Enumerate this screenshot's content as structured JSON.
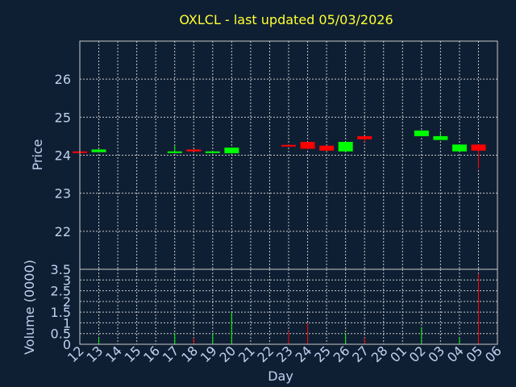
{
  "chart_data": {
    "type": "candlestick",
    "title": "OXLCL - last updated 05/03/2026",
    "price_panel": {
      "ylabel": "Price",
      "ylim": [
        21,
        27
      ],
      "yticks": [
        "22",
        "23",
        "24",
        "25",
        "26"
      ]
    },
    "volume_panel": {
      "ylabel": "Volume (0000)",
      "ylim": [
        0,
        3.5
      ],
      "yticks": [
        "0",
        "0.5",
        "1",
        "1.5",
        "2",
        "2.5",
        "3",
        "3.5"
      ]
    },
    "xlabel": "Day",
    "x_ticks": [
      "12",
      "13",
      "14",
      "15",
      "16",
      "17",
      "18",
      "19",
      "20",
      "21",
      "22",
      "23",
      "24",
      "25",
      "26",
      "27",
      "28",
      "01",
      "02",
      "03",
      "04",
      "05",
      "06"
    ],
    "colors": {
      "up": "#00ff00",
      "down": "#ff0000",
      "title": "#ffff33",
      "axis_text": "#c0d0f0",
      "background": "#0f1f33",
      "grid": "#c8c8c8"
    },
    "candles": [
      {
        "day": "12",
        "open": 24.1,
        "high": 24.1,
        "low": 24.08,
        "close": 24.08,
        "volume": 0.02
      },
      {
        "day": "13",
        "open": 24.08,
        "high": 24.15,
        "low": 24.07,
        "close": 24.15,
        "volume": 0.3
      },
      {
        "day": "17",
        "open": 24.08,
        "high": 24.25,
        "low": 24.06,
        "close": 24.1,
        "volume": 0.5
      },
      {
        "day": "18",
        "open": 24.15,
        "high": 24.15,
        "low": 24.1,
        "close": 24.1,
        "volume": 0.3
      },
      {
        "day": "19",
        "open": 24.06,
        "high": 24.1,
        "low": 24.05,
        "close": 24.1,
        "volume": 0.5
      },
      {
        "day": "20",
        "open": 24.05,
        "high": 24.2,
        "low": 24.05,
        "close": 24.2,
        "volume": 1.5
      },
      {
        "day": "23",
        "open": 24.27,
        "high": 24.28,
        "low": 24.22,
        "close": 24.24,
        "volume": 0.6
      },
      {
        "day": "24",
        "open": 24.35,
        "high": 24.35,
        "low": 24.15,
        "close": 24.17,
        "volume": 1.0
      },
      {
        "day": "25",
        "open": 24.25,
        "high": 24.25,
        "low": 24.1,
        "close": 24.12,
        "volume": 0.03
      },
      {
        "day": "26",
        "open": 24.1,
        "high": 24.35,
        "low": 24.1,
        "close": 24.35,
        "volume": 0.5
      },
      {
        "day": "27",
        "open": 24.5,
        "high": 24.5,
        "low": 24.35,
        "close": 24.42,
        "volume": 0.3
      },
      {
        "day": "02",
        "open": 24.5,
        "high": 24.65,
        "low": 24.5,
        "close": 24.65,
        "volume": 0.8
      },
      {
        "day": "03",
        "open": 24.4,
        "high": 24.6,
        "low": 24.4,
        "close": 24.5,
        "volume": 0.03
      },
      {
        "day": "04",
        "open": 24.1,
        "high": 24.28,
        "low": 24.1,
        "close": 24.28,
        "volume": 0.3
      },
      {
        "day": "05",
        "open": 24.28,
        "high": 24.28,
        "low": 23.65,
        "close": 24.12,
        "volume": 3.3
      }
    ]
  }
}
